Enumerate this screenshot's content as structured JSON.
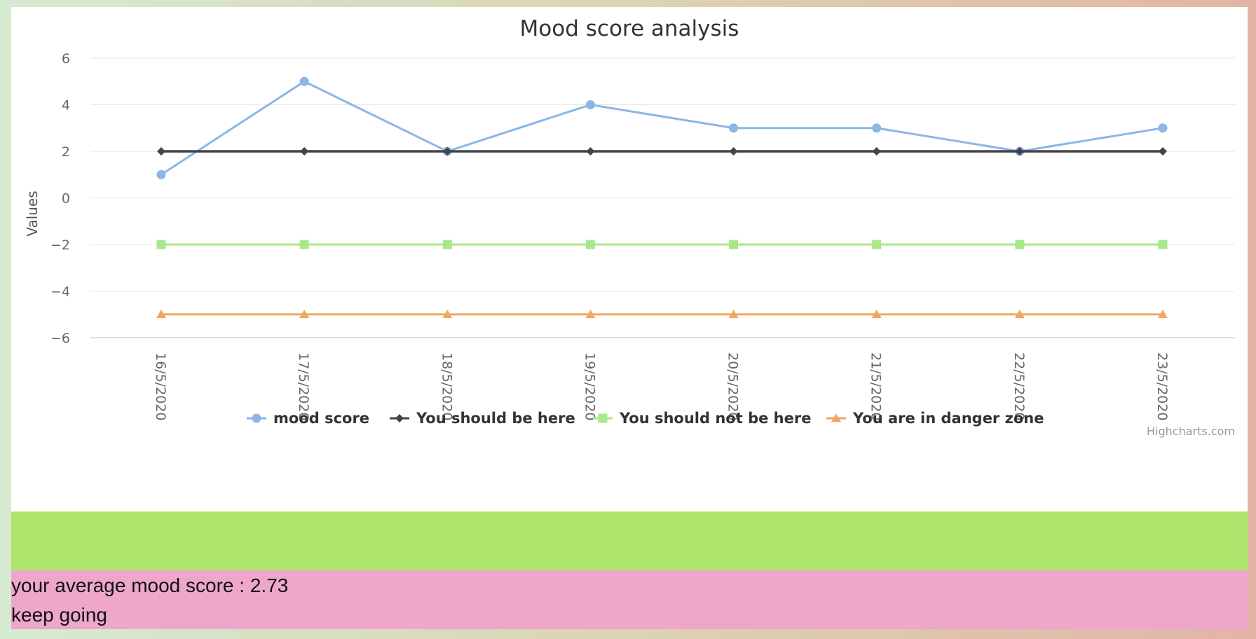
{
  "chart_data": {
    "type": "line",
    "title": "Mood score analysis",
    "ylabel": "Values",
    "xlabel": "",
    "ylim": [
      -6,
      6
    ],
    "y_ticks": [
      6,
      4,
      2,
      0,
      -2,
      -4,
      -6
    ],
    "y_tick_labels": [
      "6",
      "4",
      "2",
      "0",
      "−2",
      "−4",
      "−6"
    ],
    "grid": true,
    "legend_position": "bottom-center",
    "categories": [
      "16/5/2020",
      "17/5/2020",
      "18/5/2020",
      "19/5/2020",
      "20/5/2020",
      "21/5/2020",
      "22/5/2020",
      "23/5/2020"
    ],
    "series": [
      {
        "name": "mood score",
        "color": "#8bb6e6",
        "marker": "circle",
        "values": [
          1,
          5,
          2,
          4,
          3,
          3,
          2,
          3
        ]
      },
      {
        "name": "You should be here",
        "color": "#434348",
        "marker": "diamond",
        "values": [
          2,
          2,
          2,
          2,
          2,
          2,
          2,
          2
        ]
      },
      {
        "name": "You should not be here",
        "color": "#a8e88a",
        "marker": "square",
        "values": [
          -2,
          -2,
          -2,
          -2,
          -2,
          -2,
          -2,
          -2
        ]
      },
      {
        "name": "You are in danger zone",
        "color": "#f0a860",
        "marker": "triangle",
        "values": [
          -5,
          -5,
          -5,
          -5,
          -5,
          -5,
          -5,
          -5
        ]
      }
    ],
    "credits": "Highcharts.com"
  },
  "summary": {
    "average_text": "your average mood score : 2.73",
    "message": "keep going"
  },
  "colors": {
    "green_band": "#ade66a",
    "pink_band": "#eea6ca"
  }
}
